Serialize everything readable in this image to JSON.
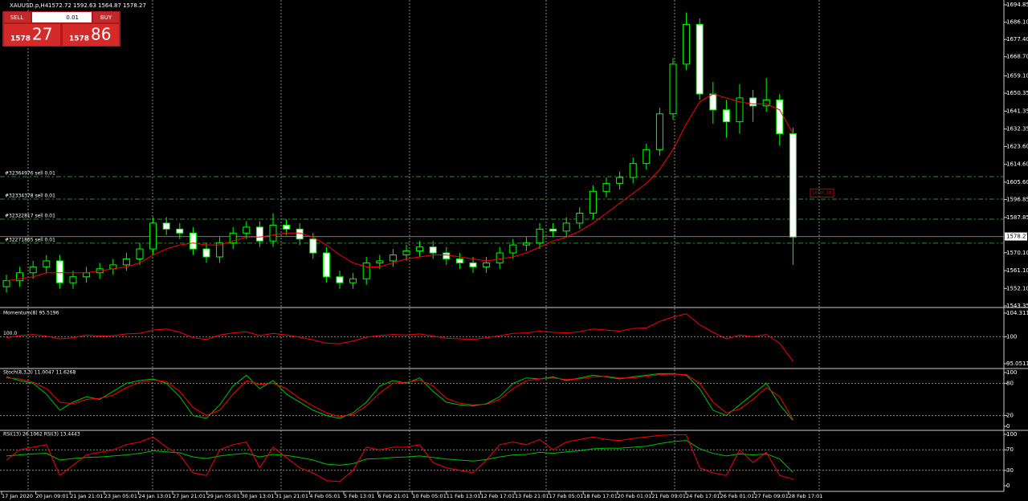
{
  "header": {
    "symbol": "XAUUSD.p,H4",
    "ohlc": [
      1572.72,
      1592.63,
      1564.87,
      1578.27
    ]
  },
  "trade_panel": {
    "sell": "SELL",
    "lot": "0.01",
    "buy": "BUY",
    "sell_big": "1578",
    "sell_small": "27",
    "buy_big": "1578",
    "buy_small": "86"
  },
  "chart": {
    "ylim": [
      1543.35,
      1694.85
    ],
    "yticks": [
      1694.85,
      {
        "value": 1686.1,
        "label": "1686.10"
      },
      {
        "value": 1677.4,
        "label": "1677.40"
      },
      {
        "value": 1668.7,
        "label": "1668.70"
      },
      {
        "value": 1659.1,
        "label": "1659.10"
      },
      1650.35,
      1641.35,
      1632.35,
      {
        "value": 1623.6,
        "label": "1623.60"
      },
      {
        "value": 1614.6,
        "label": "1614.60"
      },
      {
        "value": 1605.6,
        "label": "1605.60"
      },
      1596.85,
      1587.85,
      {
        "value": 1570.1,
        "label": "1570.10"
      },
      {
        "value": 1561.1,
        "label": "1561.10"
      },
      {
        "value": 1552.1,
        "label": "1552.10"
      },
      1543.35
    ],
    "current_price": 1578.27,
    "orders": [
      {
        "label": "#32364976 sell 0.01",
        "price": 1608.4
      },
      {
        "label": "#32334378 sell 0.01",
        "price": 1597.1
      },
      {
        "label": "#32322817 sell 0.01",
        "price": 1587
      },
      {
        "label": "#32271865 sell 0.01",
        "price": 1574.9
      }
    ],
    "marker_label": "1600.18",
    "marker_price": 1600.18,
    "candles": [
      [
        1553,
        1559,
        1550,
        1556
      ],
      [
        1556,
        1563,
        1553,
        1560
      ],
      [
        1560,
        1566,
        1557,
        1563
      ],
      [
        1563,
        1569,
        1560,
        1566
      ],
      [
        1566,
        1569,
        1552,
        1555
      ],
      [
        1555,
        1561,
        1552,
        1558
      ],
      [
        1558,
        1563,
        1555,
        1560
      ],
      [
        1560,
        1565,
        1557,
        1562
      ],
      [
        1562,
        1567,
        1559,
        1564
      ],
      [
        1564,
        1570,
        1561,
        1567
      ],
      [
        1567,
        1575,
        1564,
        1572
      ],
      [
        1572,
        1588,
        1569,
        1585
      ],
      [
        1585,
        1588,
        1579,
        1582
      ],
      [
        1582,
        1585,
        1577,
        1580
      ],
      [
        1580,
        1583,
        1569,
        1572
      ],
      [
        1572,
        1575,
        1565,
        1568
      ],
      [
        1568,
        1578,
        1565,
        1575
      ],
      [
        1575,
        1583,
        1572,
        1580
      ],
      [
        1580,
        1586,
        1577,
        1583
      ],
      [
        1583,
        1586,
        1573,
        1576
      ],
      [
        1576,
        1590,
        1573,
        1584
      ],
      [
        1584,
        1587,
        1579,
        1582
      ],
      [
        1582,
        1585,
        1574,
        1577
      ],
      [
        1577,
        1580,
        1567,
        1570
      ],
      [
        1570,
        1573,
        1555,
        1558
      ],
      [
        1558,
        1561,
        1552,
        1555
      ],
      [
        1555,
        1560,
        1552,
        1557
      ],
      [
        1557,
        1568,
        1554,
        1565
      ],
      [
        1565,
        1569,
        1562,
        1566
      ],
      [
        1566,
        1572,
        1563,
        1569
      ],
      [
        1569,
        1574,
        1566,
        1571
      ],
      [
        1571,
        1576,
        1568,
        1573
      ],
      [
        1573,
        1576,
        1567,
        1570
      ],
      [
        1570,
        1573,
        1564,
        1567
      ],
      [
        1567,
        1570,
        1562,
        1565
      ],
      [
        1565,
        1568,
        1560,
        1563
      ],
      [
        1563,
        1568,
        1560,
        1565
      ],
      [
        1565,
        1573,
        1562,
        1570
      ],
      [
        1570,
        1577,
        1567,
        1574
      ],
      [
        1574,
        1578,
        1571,
        1575
      ],
      [
        1575,
        1585,
        1572,
        1582
      ],
      [
        1582,
        1585,
        1578,
        1581
      ],
      [
        1581,
        1588,
        1578,
        1585
      ],
      [
        1585,
        1593,
        1582,
        1590
      ],
      [
        1590,
        1604,
        1587,
        1601
      ],
      [
        1601,
        1608,
        1598,
        1605
      ],
      [
        1605,
        1611,
        1602,
        1608
      ],
      [
        1608,
        1618,
        1605,
        1615
      ],
      [
        1615,
        1625,
        1612,
        1622
      ],
      [
        1622,
        1643,
        1619,
        1640
      ],
      [
        1640,
        1668,
        1637,
        1665
      ],
      [
        1665,
        1691,
        1662,
        1685
      ],
      [
        1685,
        1688,
        1647,
        1650
      ],
      [
        1650,
        1656,
        1635,
        1642
      ],
      [
        1642,
        1647,
        1628,
        1636
      ],
      [
        1636,
        1655,
        1630,
        1648
      ],
      [
        1648,
        1652,
        1636,
        1644
      ],
      [
        1644,
        1658,
        1641,
        1647
      ],
      [
        1647,
        1650,
        1624,
        1630
      ],
      [
        1630,
        1633,
        1564,
        1578
      ]
    ],
    "ma": {
      "color": "#ff0000",
      "values": [
        1556,
        1557,
        1558,
        1560,
        1560,
        1560,
        1560,
        1561,
        1562,
        1563,
        1565,
        1569,
        1572,
        1574,
        1575,
        1574,
        1574,
        1576,
        1578,
        1578,
        1579,
        1580,
        1580,
        1578,
        1574,
        1569,
        1565,
        1563,
        1563,
        1565,
        1567,
        1568,
        1569,
        1569,
        1568,
        1567,
        1566,
        1567,
        1568,
        1570,
        1573,
        1576,
        1578,
        1581,
        1585,
        1590,
        1595,
        1600,
        1605,
        1612,
        1622,
        1635,
        1646,
        1650,
        1648,
        1646,
        1645,
        1645,
        1642,
        1630
      ]
    }
  },
  "indicators": [
    {
      "label": "Momentum(8) 95.5196",
      "level_label": "100.0",
      "ylim": [
        95.0511,
        104.3117
      ],
      "yticks": [
        104.3117,
        100,
        95.0511
      ],
      "levels": [
        100
      ],
      "series": [
        {
          "color": "#ff0000",
          "values": [
            99.8,
            100.2,
            100.4,
            100.1,
            99.6,
            99.8,
            100.3,
            100.1,
            100.2,
            100.5,
            100.6,
            101.2,
            101.4,
            100.8,
            99.8,
            99.5,
            100.3,
            100.7,
            100.9,
            100.2,
            100.6,
            100.3,
            99.9,
            99.4,
            98.8,
            98.7,
            99.2,
            99.9,
            100.2,
            100.4,
            100.3,
            100.5,
            100.1,
            99.7,
            99.6,
            99.5,
            99.8,
            100.2,
            100.6,
            100.7,
            101,
            100.8,
            100.7,
            100.9,
            101.4,
            101.2,
            101,
            101.5,
            101.6,
            102.8,
            103.6,
            104.2,
            102.2,
            100.8,
            99.6,
            100.3,
            100,
            100.4,
            98.8,
            95.5
          ]
        }
      ]
    },
    {
      "label": "Stoch(8,3,3) 11.0047 11.6268",
      "ylim": [
        0,
        100
      ],
      "yticks": [
        100,
        80,
        20,
        0
      ],
      "levels": [
        80,
        20
      ],
      "series": [
        {
          "color": "#00c000",
          "values": [
            92,
            85,
            80,
            60,
            30,
            45,
            55,
            50,
            65,
            80,
            85,
            88,
            80,
            55,
            20,
            15,
            40,
            75,
            95,
            70,
            85,
            60,
            45,
            30,
            20,
            15,
            25,
            45,
            75,
            85,
            80,
            90,
            65,
            45,
            40,
            38,
            42,
            55,
            80,
            90,
            88,
            92,
            85,
            90,
            95,
            92,
            88,
            92,
            95,
            98,
            98,
            95,
            70,
            30,
            20,
            40,
            60,
            80,
            40,
            11
          ]
        },
        {
          "color": "#ff0000",
          "values": [
            90,
            88,
            82,
            70,
            45,
            42,
            50,
            52,
            58,
            72,
            82,
            86,
            83,
            65,
            35,
            20,
            30,
            60,
            85,
            78,
            80,
            70,
            52,
            38,
            25,
            18,
            22,
            38,
            62,
            80,
            82,
            86,
            75,
            52,
            43,
            40,
            41,
            50,
            70,
            85,
            88,
            90,
            87,
            88,
            92,
            93,
            90,
            90,
            93,
            96,
            97,
            96,
            80,
            45,
            25,
            32,
            50,
            72,
            55,
            12
          ]
        }
      ]
    },
    {
      "label": "RSI(13) 26.1062  RSI(3) 13.4443",
      "ylim": [
        0,
        100
      ],
      "yticks": [
        100,
        70,
        30,
        0
      ],
      "levels": [
        70,
        30
      ],
      "series": [
        {
          "color": "#00c000",
          "values": [
            58,
            60,
            62,
            63,
            50,
            53,
            55,
            56,
            58,
            60,
            63,
            68,
            66,
            64,
            56,
            53,
            58,
            61,
            63,
            56,
            61,
            59,
            55,
            50,
            42,
            40,
            43,
            52,
            53,
            55,
            56,
            58,
            55,
            52,
            50,
            48,
            51,
            56,
            60,
            61,
            65,
            63,
            66,
            68,
            72,
            73,
            73,
            75,
            77,
            82,
            86,
            88,
            72,
            63,
            58,
            62,
            60,
            62,
            52,
            26
          ]
        },
        {
          "color": "#ff0000",
          "values": [
            50,
            70,
            75,
            80,
            20,
            40,
            60,
            65,
            70,
            80,
            85,
            95,
            75,
            60,
            25,
            20,
            70,
            80,
            85,
            35,
            75,
            55,
            35,
            25,
            10,
            8,
            30,
            75,
            70,
            75,
            75,
            80,
            45,
            35,
            30,
            25,
            50,
            80,
            85,
            80,
            90,
            70,
            85,
            90,
            95,
            90,
            88,
            92,
            95,
            98,
            99,
            99,
            35,
            25,
            20,
            70,
            45,
            65,
            20,
            13
          ]
        }
      ]
    }
  ],
  "time_axis": [
    "17 Jan 2020",
    "20 Jan 09:01",
    "21 Jan 21:01",
    "23 Jan 05:01",
    "24 Jan 13:01",
    "27 Jan 21:01",
    "29 Jan 05:01",
    "30 Jan 13:01",
    "31 Jan 21:01",
    "4 Feb 05:01",
    "5 Feb 13:01",
    "6 Feb 21:01",
    "10 Feb 05:01",
    "11 Feb 13:01",
    "12 Feb 17:01",
    "13 Feb 21:01",
    "17 Feb 05:01",
    "18 Feb 17:01",
    "20 Feb 01:01",
    "21 Feb 09:01",
    "24 Feb 17:01",
    "26 Feb 01:01",
    "27 Feb 09:01",
    "28 Feb 17:01"
  ]
}
